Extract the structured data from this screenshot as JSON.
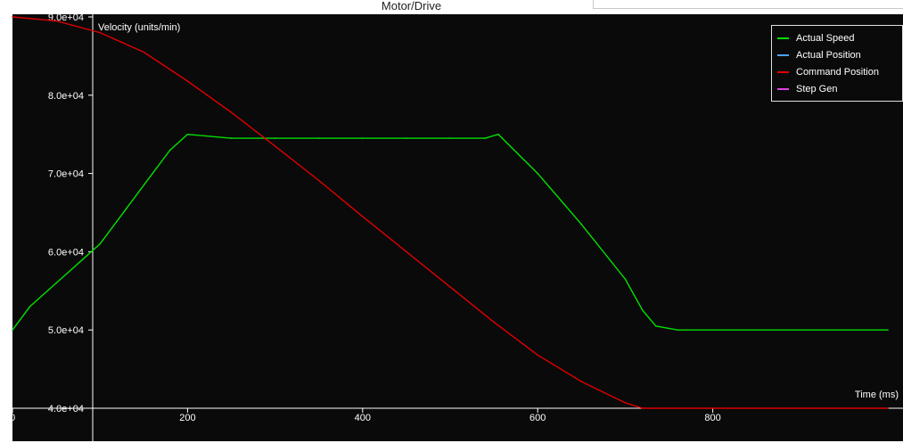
{
  "window": {
    "title": "Motor/Drive"
  },
  "colors": {
    "plot_background": "#0a0a0a",
    "axis": "#ffffff",
    "actual_speed": "#00e000",
    "actual_position": "#4aa3ff",
    "command_position": "#e00000",
    "step_gen": "#e040e0"
  },
  "chart_data": {
    "type": "line",
    "ylabel": "Velocity (units/min)",
    "xlabel": "Time (ms)",
    "xlim": [
      0,
      1000
    ],
    "ylim": [
      40000,
      90000
    ],
    "x_ticks": [
      "0",
      "200",
      "400",
      "600",
      "800"
    ],
    "y_ticks": [
      "4.0e+04",
      "5.0e+04",
      "6.0e+04",
      "7.0e+04",
      "8.0e+04",
      "9.0e+04"
    ],
    "legend": {
      "placement": "top-right",
      "entries": [
        "Actual Speed",
        "Actual Position",
        "Command Position",
        "Step Gen"
      ]
    },
    "series": [
      {
        "name": "Actual Speed",
        "color": "#00e000",
        "x": [
          0,
          20,
          50,
          80,
          100,
          130,
          160,
          180,
          200,
          250,
          300,
          350,
          400,
          450,
          500,
          540,
          555,
          600,
          650,
          700,
          720,
          735,
          760,
          1000
        ],
        "y": [
          50000,
          53000,
          56000,
          59000,
          61000,
          65500,
          70000,
          73000,
          75000,
          74500,
          74500,
          74500,
          74500,
          74500,
          74500,
          74500,
          75000,
          70000,
          63500,
          56500,
          52500,
          50500,
          50000,
          50000
        ]
      },
      {
        "name": "Command Position",
        "color": "#e00000",
        "x": [
          0,
          50,
          100,
          150,
          200,
          250,
          300,
          350,
          400,
          450,
          500,
          550,
          600,
          650,
          700,
          720,
          1000
        ],
        "y": [
          90000,
          89500,
          88000,
          85500,
          81800,
          77800,
          73500,
          69100,
          64500,
          60000,
          55500,
          51000,
          46800,
          43400,
          40700,
          40000,
          40000
        ]
      },
      {
        "name": "Actual Position",
        "color": "#4aa3ff",
        "x": [],
        "y": []
      },
      {
        "name": "Step Gen",
        "color": "#e040e0",
        "x": [],
        "y": []
      }
    ]
  }
}
